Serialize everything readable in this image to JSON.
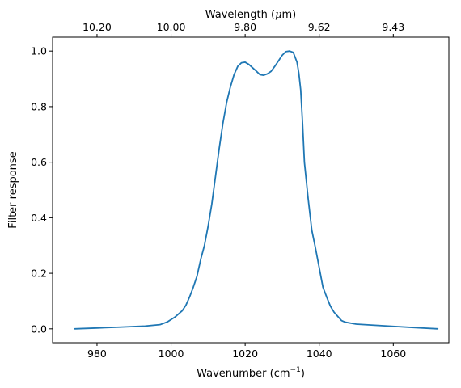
{
  "chart_data": {
    "type": "line",
    "title": "",
    "xlabel": "Wavenumber (cm",
    "xlabel_sup": "−1",
    "xlabel_end": ")",
    "ylabel": "Filter response",
    "top_xlabel_prefix": "Wavelength (",
    "top_xlabel_mu": "μ",
    "top_xlabel_suffix": "m)",
    "xlim": [
      968,
      1075
    ],
    "ylim": [
      -0.05,
      1.05
    ],
    "x_ticks": [
      {
        "value": 980,
        "label": "980"
      },
      {
        "value": 1000,
        "label": "1000"
      },
      {
        "value": 1020,
        "label": "1020"
      },
      {
        "value": 1040,
        "label": "1040"
      },
      {
        "value": 1060,
        "label": "1060"
      }
    ],
    "y_ticks": [
      {
        "value": 0.0,
        "label": "0.0"
      },
      {
        "value": 0.2,
        "label": "0.2"
      },
      {
        "value": 0.4,
        "label": "0.4"
      },
      {
        "value": 0.6,
        "label": "0.6"
      },
      {
        "value": 0.8,
        "label": "0.8"
      },
      {
        "value": 1.0,
        "label": "1.0"
      }
    ],
    "top_ticks": [
      {
        "value": 980,
        "label": "10.20"
      },
      {
        "value": 1000,
        "label": "10.00"
      },
      {
        "value": 1020,
        "label": "9.80"
      },
      {
        "value": 1040,
        "label": "9.62"
      },
      {
        "value": 1060,
        "label": "9.43"
      }
    ],
    "grid": false,
    "legend": "none",
    "series": [
      {
        "color": "#1f77b4",
        "x": [
          974,
          980,
          986,
          993,
          997,
          999,
          1001,
          1003,
          1004,
          1005,
          1006,
          1007,
          1008,
          1009,
          1010,
          1011,
          1012,
          1013,
          1014,
          1015,
          1016,
          1017,
          1018,
          1019,
          1020,
          1021,
          1022,
          1023,
          1024,
          1025,
          1026,
          1027,
          1028,
          1029,
          1030,
          1031,
          1032,
          1033,
          1034,
          1034.5,
          1035,
          1035.5,
          1036,
          1037,
          1038,
          1039,
          1040,
          1041,
          1042,
          1043,
          1044,
          1045,
          1046,
          1047,
          1050,
          1055,
          1060,
          1065,
          1072
        ],
        "y": [
          0.0,
          0.003,
          0.006,
          0.01,
          0.015,
          0.025,
          0.042,
          0.065,
          0.085,
          0.115,
          0.15,
          0.19,
          0.25,
          0.3,
          0.37,
          0.45,
          0.55,
          0.65,
          0.74,
          0.815,
          0.87,
          0.915,
          0.945,
          0.958,
          0.96,
          0.952,
          0.94,
          0.928,
          0.915,
          0.913,
          0.918,
          0.927,
          0.945,
          0.965,
          0.985,
          0.998,
          1.0,
          0.995,
          0.96,
          0.92,
          0.86,
          0.74,
          0.6,
          0.47,
          0.355,
          0.29,
          0.22,
          0.15,
          0.115,
          0.082,
          0.06,
          0.045,
          0.03,
          0.024,
          0.017,
          0.013,
          0.009,
          0.005,
          0.0
        ]
      }
    ]
  }
}
